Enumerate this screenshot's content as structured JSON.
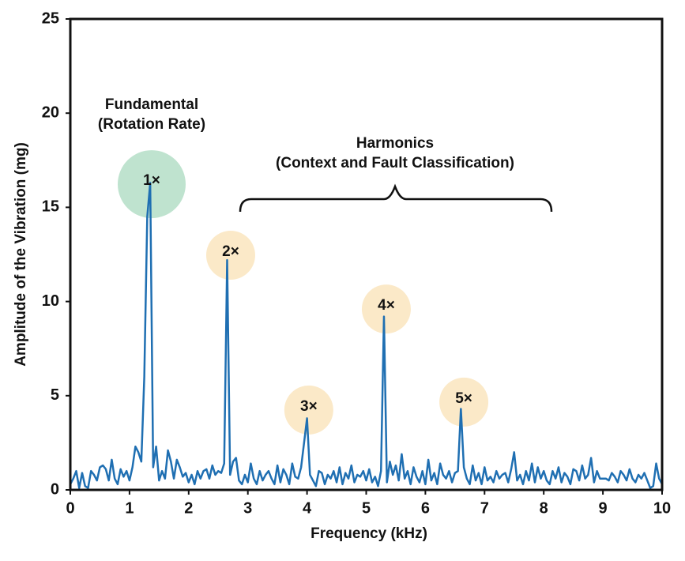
{
  "chart_data": {
    "type": "line",
    "xlabel": "Frequency (kHz)",
    "ylabel": "Amplitude of the Vibration (mg)",
    "xlim": [
      0,
      10
    ],
    "xticks": [
      0,
      1,
      2,
      3,
      4,
      5,
      6,
      7,
      8,
      9,
      10
    ],
    "ylim": [
      0,
      25
    ],
    "yticks": [
      0,
      5,
      10,
      15,
      20,
      25
    ],
    "grid": false,
    "x": [
      0,
      0.05,
      0.1,
      0.15,
      0.2,
      0.25,
      0.3,
      0.35,
      0.4,
      0.45,
      0.5,
      0.55,
      0.6,
      0.65,
      0.7,
      0.75,
      0.8,
      0.85,
      0.9,
      0.95,
      1,
      1.05,
      1.1,
      1.15,
      1.2,
      1.25,
      1.3,
      1.35,
      1.4,
      1.45,
      1.5,
      1.55,
      1.6,
      1.65,
      1.7,
      1.75,
      1.8,
      1.85,
      1.9,
      1.95,
      2,
      2.05,
      2.1,
      2.15,
      2.2,
      2.25,
      2.3,
      2.35,
      2.4,
      2.45,
      2.5,
      2.55,
      2.6,
      2.65,
      2.7,
      2.75,
      2.8,
      2.85,
      2.9,
      2.95,
      3,
      3.05,
      3.1,
      3.15,
      3.2,
      3.25,
      3.3,
      3.35,
      3.4,
      3.45,
      3.5,
      3.55,
      3.6,
      3.65,
      3.7,
      3.75,
      3.8,
      3.85,
      3.9,
      3.95,
      4,
      4.05,
      4.1,
      4.15,
      4.2,
      4.25,
      4.3,
      4.35,
      4.4,
      4.45,
      4.5,
      4.55,
      4.6,
      4.65,
      4.7,
      4.75,
      4.8,
      4.85,
      4.9,
      4.95,
      5,
      5.05,
      5.1,
      5.15,
      5.2,
      5.25,
      5.3,
      5.35,
      5.4,
      5.45,
      5.5,
      5.55,
      5.6,
      5.65,
      5.7,
      5.75,
      5.8,
      5.85,
      5.9,
      5.95,
      6,
      6.05,
      6.1,
      6.15,
      6.2,
      6.25,
      6.3,
      6.35,
      6.4,
      6.45,
      6.5,
      6.55,
      6.6,
      6.65,
      6.7,
      6.75,
      6.8,
      6.85,
      6.9,
      6.95,
      7,
      7.05,
      7.1,
      7.15,
      7.2,
      7.25,
      7.3,
      7.35,
      7.4,
      7.45,
      7.5,
      7.55,
      7.6,
      7.65,
      7.7,
      7.75,
      7.8,
      7.85,
      7.9,
      7.95,
      8,
      8.05,
      8.1,
      8.15,
      8.2,
      8.25,
      8.3,
      8.35,
      8.4,
      8.45,
      8.5,
      8.55,
      8.6,
      8.65,
      8.7,
      8.75,
      8.8,
      8.85,
      8.9,
      8.95,
      9,
      9.05,
      9.1,
      9.15,
      9.2,
      9.25,
      9.3,
      9.35,
      9.4,
      9.45,
      9.5,
      9.55,
      9.6,
      9.65,
      9.7,
      9.75,
      9.8,
      9.85,
      9.9,
      9.95,
      10
    ],
    "series": [
      {
        "color": "#1f6fb2",
        "values": [
          0.3,
          0.6,
          1.0,
          0.1,
          0.9,
          0.2,
          0.1,
          1.0,
          0.8,
          0.5,
          1.2,
          1.3,
          1.1,
          0.5,
          1.6,
          0.6,
          0.3,
          1.1,
          0.7,
          1.0,
          0.5,
          1.2,
          2.3,
          2.0,
          1.5,
          6.0,
          14.5,
          16.3,
          1.2,
          2.3,
          0.5,
          1.0,
          0.6,
          2.1,
          1.5,
          0.6,
          1.6,
          1.2,
          0.7,
          0.9,
          0.4,
          0.8,
          0.3,
          1.0,
          0.6,
          1.0,
          1.1,
          0.6,
          1.3,
          0.8,
          1.0,
          0.9,
          1.4,
          12.2,
          0.8,
          1.5,
          1.7,
          0.5,
          0.3,
          0.8,
          0.4,
          1.4,
          0.6,
          0.3,
          1.0,
          0.5,
          0.8,
          1.0,
          0.6,
          0.3,
          1.3,
          0.4,
          1.1,
          0.8,
          0.3,
          1.4,
          0.7,
          0.6,
          1.2,
          2.5,
          3.8,
          0.8,
          0.5,
          0.2,
          1.0,
          0.9,
          0.3,
          0.8,
          0.6,
          1.0,
          0.4,
          1.2,
          0.3,
          0.9,
          0.6,
          1.3,
          0.4,
          0.8,
          0.7,
          1.0,
          0.5,
          1.1,
          0.4,
          0.7,
          0.2,
          1.0,
          9.2,
          0.4,
          1.5,
          0.8,
          1.3,
          0.5,
          1.9,
          0.6,
          1.0,
          0.3,
          1.2,
          0.7,
          0.4,
          1.0,
          0.3,
          1.6,
          0.5,
          0.9,
          0.3,
          1.4,
          0.8,
          0.6,
          1.0,
          0.4,
          0.9,
          1.0,
          4.3,
          1.2,
          0.6,
          0.3,
          1.3,
          0.5,
          0.9,
          0.3,
          1.2,
          0.5,
          0.7,
          0.4,
          1.0,
          0.6,
          0.8,
          0.9,
          0.4,
          1.1,
          2.0,
          0.5,
          0.8,
          0.3,
          1.0,
          0.5,
          1.4,
          0.4,
          1.2,
          0.6,
          1.0,
          0.5,
          0.3,
          1.0,
          0.6,
          1.2,
          0.4,
          0.9,
          0.7,
          0.3,
          1.1,
          1.0,
          0.5,
          1.3,
          0.6,
          0.8,
          1.7,
          0.4,
          1.0,
          0.6,
          0.6,
          0.6,
          0.5,
          0.9,
          0.7,
          0.4,
          1.0,
          0.8,
          0.5,
          1.1,
          0.6,
          0.4,
          0.8,
          0.6,
          0.9,
          0.5,
          0.1,
          0.2,
          1.4,
          0.6,
          0.3
        ]
      }
    ],
    "peak_labels": [
      {
        "text": "1×",
        "x": 1.375,
        "y": 16.23,
        "color": "#bfe3cf"
      },
      {
        "text": "2×",
        "x": 2.71,
        "y": 12.46,
        "color": "#fbe9c8"
      },
      {
        "text": "3×",
        "x": 4.03,
        "y": 4.24,
        "color": "#fbe9c8"
      },
      {
        "text": "4×",
        "x": 5.34,
        "y": 9.6,
        "color": "#fbe9c8"
      },
      {
        "text": "5×",
        "x": 6.65,
        "y": 4.66,
        "color": "#fbe9c8"
      }
    ],
    "fundamental_label": [
      "Fundamental",
      "(Rotation Rate)"
    ],
    "harmonics_label": [
      "Harmonics",
      "(Context and Fault Classification)"
    ]
  }
}
